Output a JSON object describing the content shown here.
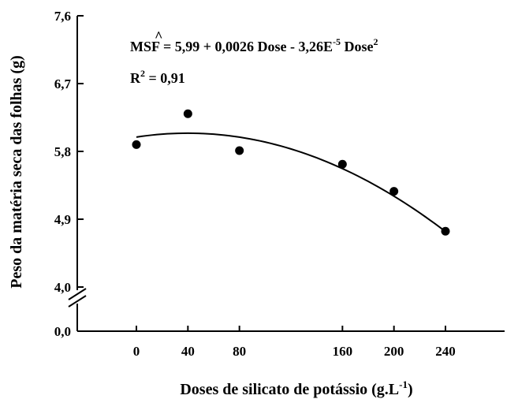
{
  "chart_data": {
    "type": "scatter",
    "x_ticks": [
      "0",
      "40",
      "80",
      "160",
      "200",
      "240"
    ],
    "y_ticks": [
      "0,0",
      "4,0",
      "4,9",
      "5,8",
      "6,7",
      "7,6"
    ],
    "xlabel": "Doses de silicato de potássio (g.L",
    "xlabel_sup": "-1",
    "xlabel_end": ")",
    "ylabel": "Peso da matéria seca das folhas (g)",
    "ylim": [
      4.0,
      7.6
    ],
    "y_break": true,
    "points": [
      {
        "x": 0,
        "y": 5.89
      },
      {
        "x": 40,
        "y": 6.3
      },
      {
        "x": 80,
        "y": 5.81
      },
      {
        "x": 160,
        "y": 5.63
      },
      {
        "x": 200,
        "y": 5.27
      },
      {
        "x": 240,
        "y": 4.74
      }
    ],
    "fit": {
      "a": 5.99,
      "b": 0.0026,
      "c": -3.26e-05
    },
    "equation": {
      "lhs": "MSF",
      "hat": "^",
      "rhs1": "= 5,99 + 0,0026 Dose - 3,26E",
      "exp1": "-5",
      "rhs2": " Dose",
      "exp2": "2"
    },
    "r2": {
      "label": "R",
      "sup": "2",
      "value": " = 0,91"
    }
  }
}
